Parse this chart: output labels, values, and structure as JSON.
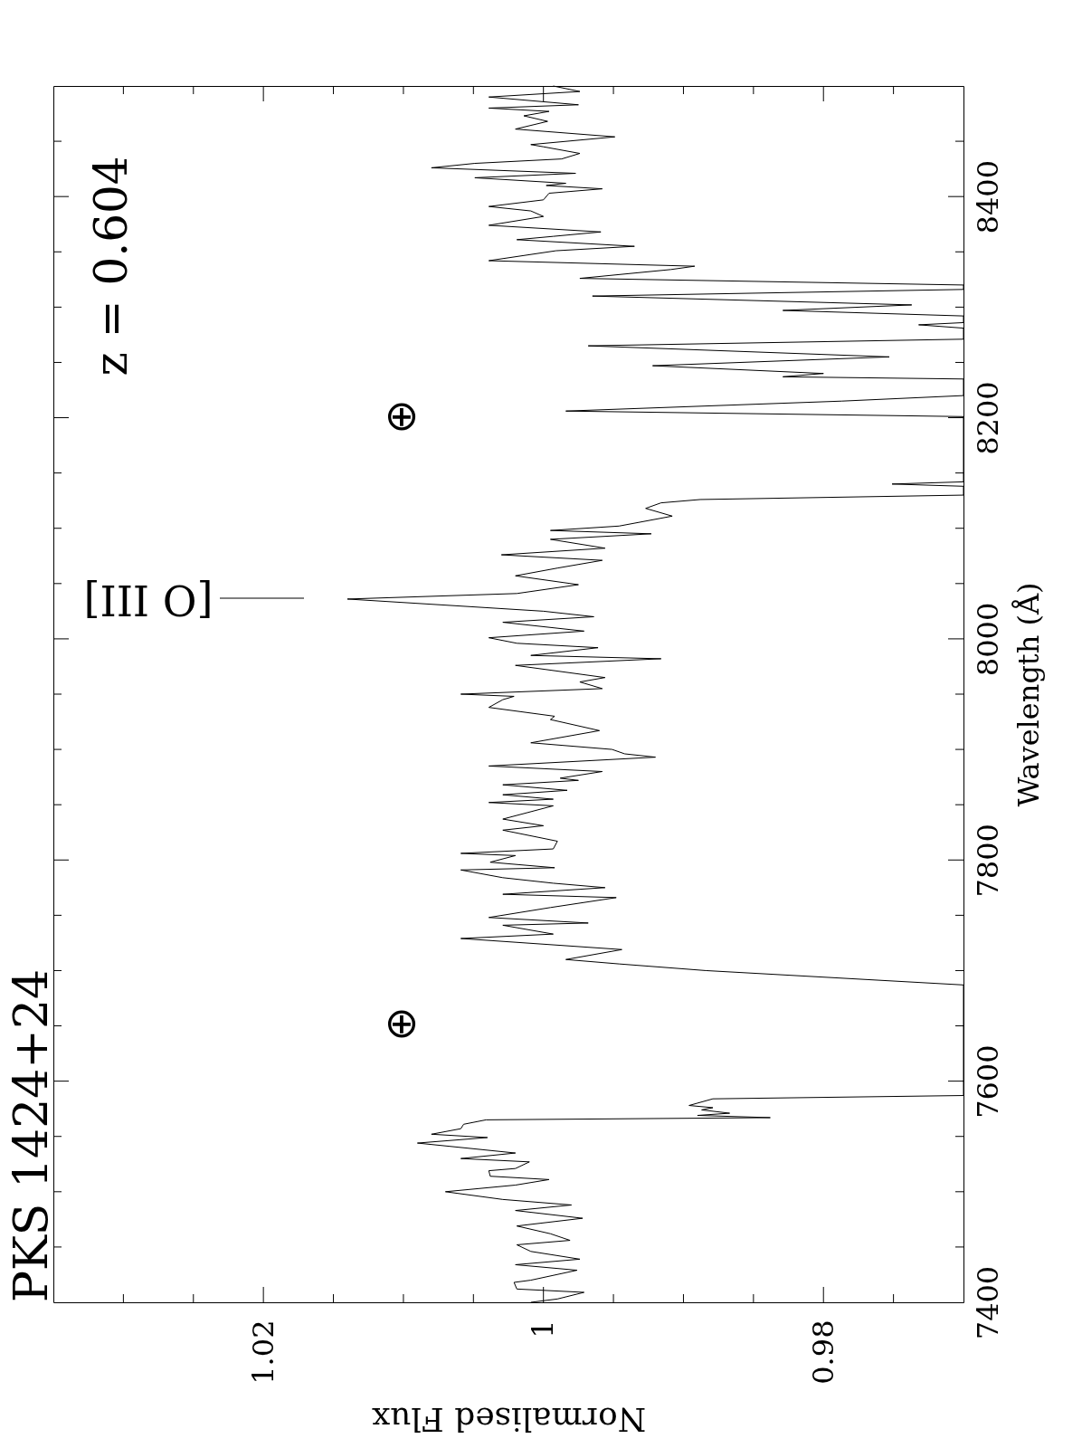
{
  "chart_data": {
    "type": "line",
    "title": "PKS 1424+24",
    "xlabel": "Normalised Flux",
    "ylabel": "Wavelength (Å)",
    "x": [
      1.0009,
      0.999,
      0.9971,
      1.0019,
      1.0021,
      1.0009,
      0.9976,
      1.002,
      0.9974,
      1.0009,
      1.0019,
      0.9981,
      0.9995,
      1.0019,
      0.9972,
      1.002,
      0.998,
      1.0029,
      1.007,
      1.002,
      0.9996,
      1.0038,
      1.0039,
      1.002,
      1.001,
      1.0059,
      1.002,
      1.009,
      1.004,
      1.008,
      1.0059,
      1.0057,
      1.0041,
      0.9838,
      0.989,
      0.9867,
      0.9887,
      0.9879,
      0.9896,
      0.9879,
      0.97,
      0.97,
      0.9884,
      0.9946,
      0.9984,
      0.9944,
      1.0059,
      0.9993,
      1.0029,
      0.9968,
      1.0039,
      0.9995,
      0.9948,
      1.0029,
      0.9956,
      0.9993,
      1.0029,
      1.0059,
      0.9992,
      1.0038,
      1.002,
      1.0059,
      0.9993,
      0.999,
      1.0029,
      1.0,
      1.0029,
      0.9993,
      1.0039,
      0.9993,
      1.0029,
      0.9983,
      1.0029,
      0.9975,
      0.9988,
      0.9958,
      1.0039,
      0.992,
      0.9942,
      0.9951,
      1.0009,
      0.996,
      0.9995,
      0.9992,
      1.0039,
      1.0029,
      1.0021,
      1.0059,
      0.9958,
      0.9974,
      0.9956,
      1.002,
      0.9916,
      1.0009,
      0.9961,
      1.0019,
      1.0039,
      0.9971,
      1.0029,
      0.9964,
      1.0,
      1.014,
      1.0019,
      0.9975,
      1.002,
      0.999,
      0.9958,
      1.003,
      0.9956,
      0.9995,
      0.9923,
      0.9995,
      0.9946,
      0.9908,
      0.9927,
      0.9916,
      0.9888,
      0.97,
      0.97,
      0.9751,
      0.97,
      0.97,
      0.9984,
      0.9787,
      0.97,
      0.97,
      0.9829,
      0.98,
      0.9922,
      0.9753,
      0.9968,
      0.97,
      0.97,
      0.9732,
      0.97,
      0.97,
      0.9829,
      0.9737,
      0.9965,
      0.97,
      0.97,
      0.9974,
      0.9909,
      0.9892,
      1.0039,
      0.9991,
      0.9935,
      1.0019,
      0.9993,
      0.9959,
      1.0039,
      1.0,
      1.0009,
      1.0039,
      1.0,
      0.9996,
      0.9958,
      0.9998,
      0.9984,
      1.0049,
      0.9977,
      1.008,
      1.0049,
      0.9987,
      0.9974,
      1.0,
      1.0009,
      0.9949,
      1.002,
      0.9997,
      1.0014,
      0.9996,
      1.0039,
      0.9975,
      1.0039,
      0.9974,
      0.9993
    ],
    "series": [
      {
        "color": "#000000",
        "values": [
          7400,
          7403,
          7409,
          7412,
          7418,
          7420,
          7429,
          7434,
          7439,
          7446,
          7452,
          7456,
          7462,
          7469,
          7476,
          7483,
          7488,
          7493,
          7500,
          7506,
          7511,
          7514,
          7519,
          7521,
          7527,
          7530,
          7535,
          7544,
          7549,
          7552,
          7557,
          7561,
          7565,
          7567,
          7569,
          7571,
          7574,
          7576,
          7578,
          7584,
          7587,
          7687,
          7700,
          7706,
          7710,
          7719,
          7729,
          7733,
          7741,
          7743,
          7748,
          7757,
          7766,
          7769,
          7775,
          7779,
          7784,
          7791,
          7793,
          7798,
          7804,
          7806,
          7810,
          7817,
          7827,
          7831,
          7837,
          7849,
          7852,
          7855,
          7859,
          7863,
          7868,
          7872,
          7874,
          7880,
          7885,
          7893,
          7896,
          7900,
          7906,
          7917,
          7927,
          7930,
          7938,
          7945,
          7948,
          7950,
          7955,
          7961,
          7965,
          7976,
          7982,
          7985,
          7992,
          7996,
          8001,
          8007,
          8015,
          8020,
          8025,
          8036,
          8041,
          8049,
          8057,
          8064,
          8071,
          8076,
          8082,
          8090,
          8095,
          8098,
          8102,
          8111,
          8118,
          8123,
          8126,
          8130,
          8138,
          8140,
          8142,
          8201,
          8206,
          8215,
          8220,
          8235,
          8237,
          8240,
          8247,
          8255,
          8265,
          8271,
          8281,
          8284,
          8286,
          8292,
          8297,
          8302,
          8310,
          8316,
          8320,
          8326,
          8334,
          8337,
          8342,
          8351,
          8355,
          8361,
          8364,
          8368,
          8374,
          8382,
          8387,
          8391,
          8397,
          8403,
          8407,
          8410,
          8412,
          8417,
          8421,
          8426,
          8430,
          8434,
          8439,
          8445,
          8447,
          8454,
          8461,
          8468,
          8473,
          8477,
          8480,
          8483,
          8490,
          8495,
          8500
        ]
      }
    ],
    "xlim": [
      1.035,
      0.97
    ],
    "xticks": [
      {
        "value": 1.03,
        "label": null
      },
      {
        "value": 1.025,
        "label": null
      },
      1.02,
      {
        "value": 1.015,
        "label": null
      },
      {
        "value": 1.01,
        "label": null
      },
      {
        "value": 1.005,
        "label": null
      },
      1,
      {
        "value": 0.995,
        "label": null
      },
      {
        "value": 0.99,
        "label": null
      },
      {
        "value": 0.985,
        "label": null
      },
      0.98,
      {
        "value": 0.975,
        "label": null
      }
    ],
    "ylim": [
      7400,
      8500
    ],
    "yticks": [
      7400,
      {
        "value": 7450,
        "label": null
      },
      {
        "value": 7500,
        "label": null
      },
      {
        "value": 7550,
        "label": null
      },
      7600,
      {
        "value": 7650,
        "label": null
      },
      {
        "value": 7700,
        "label": null
      },
      {
        "value": 7750,
        "label": null
      },
      7800,
      {
        "value": 7850,
        "label": null
      },
      {
        "value": 7900,
        "label": null
      },
      {
        "value": 7950,
        "label": null
      },
      8000,
      {
        "value": 8050,
        "label": null
      },
      {
        "value": 8100,
        "label": null
      },
      {
        "value": 8150,
        "label": null
      },
      8200,
      {
        "value": 8250,
        "label": null
      },
      {
        "value": 8300,
        "label": null
      },
      {
        "value": 8350,
        "label": null
      },
      8400,
      {
        "value": 8450,
        "label": null
      }
    ],
    "grid": false,
    "annotations": [
      "z = 0.604",
      "[O III]",
      "⊕",
      "⊕"
    ]
  }
}
